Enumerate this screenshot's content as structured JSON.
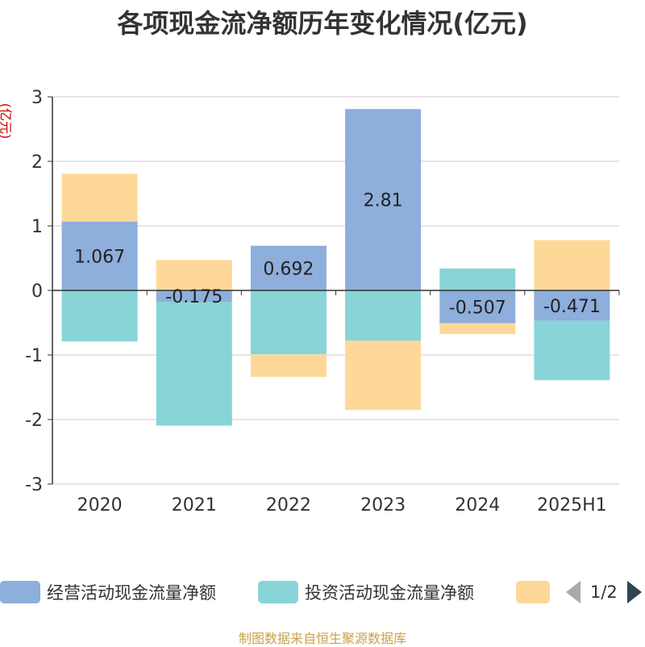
{
  "title": "各项现金流净额历年变化情况(亿元)",
  "source": "制图数据来自恒生聚源数据库",
  "pager": {
    "text": "1/2"
  },
  "chart_data": {
    "type": "bar",
    "stacked": true,
    "y_unit": "(亿元)",
    "categories": [
      "2020",
      "2021",
      "2022",
      "2023",
      "2024",
      "2025H1"
    ],
    "ylim": [
      -3,
      3
    ],
    "yticks": [
      "3",
      "2",
      "1",
      "0",
      "-1",
      "-2",
      "-3"
    ],
    "grid": true,
    "legend_position": "bottom",
    "series": [
      {
        "name": "经营活动现金流量净额",
        "color": "#8eaedb",
        "values": [
          1.067,
          -0.175,
          0.692,
          2.81,
          -0.507,
          -0.471
        ],
        "labels": [
          "1.067",
          "-0.175",
          "0.692",
          "2.81",
          "-0.507",
          "-0.471"
        ]
      },
      {
        "name": "投资活动现金流量净额",
        "color": "#88d4d7",
        "values": [
          -0.79,
          -1.92,
          -0.99,
          -0.78,
          0.34,
          -0.92
        ]
      },
      {
        "name": "",
        "color": "#fdd898",
        "values": [
          0.74,
          0.47,
          -0.35,
          -1.07,
          -0.17,
          0.78
        ]
      }
    ]
  }
}
